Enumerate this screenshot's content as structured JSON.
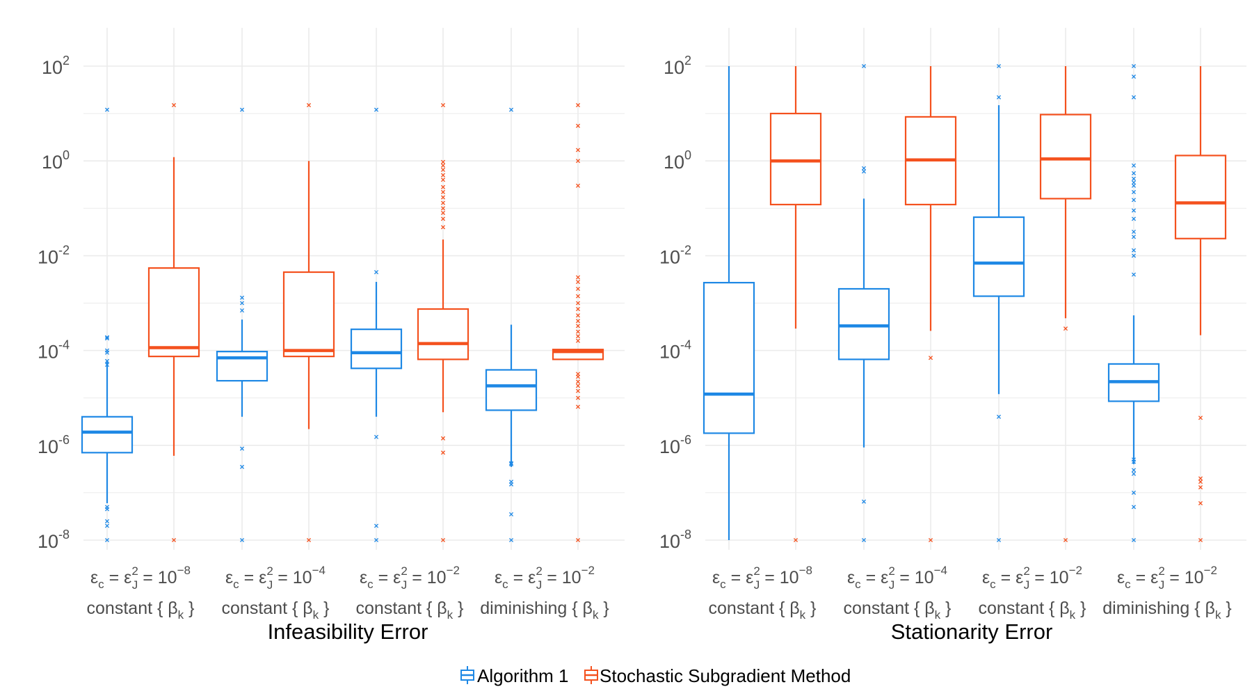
{
  "colors": {
    "algorithm1": "#1e88e5",
    "ssm": "#f4511e",
    "grid": "#ebebeb",
    "axis_text": "#4d4d4d",
    "title_text": "#000000"
  },
  "legend": {
    "position": "bottom",
    "items": [
      {
        "name": "Algorithm 1",
        "color": "#1e88e5"
      },
      {
        "name": "Stochastic Subgradient Method",
        "color": "#f4511e"
      }
    ]
  },
  "chart_data": [
    {
      "type": "box",
      "title": "Infeasibility Error",
      "yscale": "log10",
      "ylim": [
        1e-08,
        100
      ],
      "yticks": [
        {
          "value": 100,
          "base": "10",
          "exp": "2"
        },
        {
          "value": 1,
          "base": "10",
          "exp": "0"
        },
        {
          "value": 0.01,
          "base": "10",
          "exp": "-2"
        },
        {
          "value": 0.0001,
          "base": "10",
          "exp": "-4"
        },
        {
          "value": 1e-06,
          "base": "10",
          "exp": "-6"
        },
        {
          "value": 1e-08,
          "base": "10",
          "exp": "-8"
        }
      ],
      "categories": [
        {
          "line1": {
            "eps_c": "ε",
            "sub_c": "c",
            "eq": " = ε",
            "sup2": "2",
            "subJ": "J",
            "eq2": " = 10",
            "exp": "−8"
          },
          "line2": {
            "prefix": "constant { β",
            "sub": "k",
            "suffix": " }"
          }
        },
        {
          "line1": {
            "eps_c": "ε",
            "sub_c": "c",
            "eq": " = ε",
            "sup2": "2",
            "subJ": "J",
            "eq2": " = 10",
            "exp": "−4"
          },
          "line2": {
            "prefix": "constant { β",
            "sub": "k",
            "suffix": " }"
          }
        },
        {
          "line1": {
            "eps_c": "ε",
            "sub_c": "c",
            "eq": " = ε",
            "sup2": "2",
            "subJ": "J",
            "eq2": " = 10",
            "exp": "−2"
          },
          "line2": {
            "prefix": "constant { β",
            "sub": "k",
            "suffix": " }"
          }
        },
        {
          "line1": {
            "eps_c": "ε",
            "sub_c": "c",
            "eq": " = ε",
            "sup2": "2",
            "subJ": "J",
            "eq2": " = 10",
            "exp": "−2"
          },
          "line2": {
            "prefix": "diminishing { β",
            "sub": "k",
            "suffix": " }"
          }
        }
      ],
      "series": [
        {
          "name": "Algorithm 1",
          "boxes": [
            {
              "whisker_low": 6e-08,
              "q1": 7e-07,
              "median": 1.9e-06,
              "q3": 4e-06,
              "whisker_high": 6e-05,
              "outliers": [
                1e-08,
                2e-08,
                2.5e-08,
                4.5e-08,
                5e-08,
                5e-05,
                6e-05,
                9e-05,
                0.0001,
                0.00018,
                0.00019,
                12
              ]
            },
            {
              "whisker_low": 4e-06,
              "q1": 2.3e-05,
              "median": 7e-05,
              "q3": 9.5e-05,
              "whisker_high": 0.00045,
              "outliers": [
                1e-08,
                3.5e-07,
                8.5e-07,
                0.0007,
                0.001,
                0.0013,
                12
              ]
            },
            {
              "whisker_low": 4e-06,
              "q1": 4.2e-05,
              "median": 9e-05,
              "q3": 0.00028,
              "whisker_high": 0.0028,
              "outliers": [
                1e-08,
                2e-08,
                1.5e-06,
                0.0045,
                12
              ]
            },
            {
              "whisker_low": 3.5e-07,
              "q1": 5.5e-06,
              "median": 1.8e-05,
              "q3": 3.9e-05,
              "whisker_high": 0.00035,
              "outliers": [
                1e-08,
                3.5e-08,
                1.5e-07,
                1.7e-07,
                4e-07,
                4.2e-07,
                12
              ]
            }
          ]
        },
        {
          "name": "Stochastic Subgradient Method",
          "boxes": [
            {
              "whisker_low": 6e-07,
              "q1": 7.5e-05,
              "median": 0.000115,
              "q3": 0.0055,
              "whisker_high": 1.2,
              "outliers": [
                1e-08,
                15
              ]
            },
            {
              "whisker_low": 2.2e-06,
              "q1": 7.5e-05,
              "median": 0.0001,
              "q3": 0.0045,
              "whisker_high": 1,
              "outliers": [
                1e-08,
                15
              ]
            },
            {
              "whisker_low": 5e-06,
              "q1": 6.5e-05,
              "median": 0.00014,
              "q3": 0.00075,
              "whisker_high": 0.022,
              "outliers": [
                1e-08,
                7e-07,
                1.4e-06,
                0.04,
                0.06,
                0.08,
                0.1,
                0.13,
                0.17,
                0.22,
                0.28,
                0.4,
                0.5,
                0.65,
                0.8,
                0.95,
                15
              ]
            },
            {
              "whisker_low": 6.5e-05,
              "q1": 6.5e-05,
              "median": 9.5e-05,
              "q3": 0.000105,
              "whisker_high": 0.000105,
              "outliers": [
                1e-08,
                6.5e-06,
                1e-05,
                1.4e-05,
                1.8e-05,
                2.2e-05,
                2.8e-05,
                3.2e-05,
                0.00016,
                0.0002,
                0.00025,
                0.00033,
                0.00042,
                0.00055,
                0.00075,
                0.001,
                0.0014,
                0.002,
                0.0028,
                0.0035,
                0.3,
                1,
                1.7,
                5.5,
                15
              ]
            }
          ]
        }
      ]
    },
    {
      "type": "box",
      "title": "Stationarity Error",
      "yscale": "log10",
      "ylim": [
        1e-08,
        100
      ],
      "yticks": [
        {
          "value": 100,
          "base": "10",
          "exp": "2"
        },
        {
          "value": 1,
          "base": "10",
          "exp": "0"
        },
        {
          "value": 0.01,
          "base": "10",
          "exp": "-2"
        },
        {
          "value": 0.0001,
          "base": "10",
          "exp": "-4"
        },
        {
          "value": 1e-06,
          "base": "10",
          "exp": "-6"
        },
        {
          "value": 1e-08,
          "base": "10",
          "exp": "-8"
        }
      ],
      "categories": [
        {
          "line1": {
            "eps_c": "ε",
            "sub_c": "c",
            "eq": " = ε",
            "sup2": "2",
            "subJ": "J",
            "eq2": " = 10",
            "exp": "−8"
          },
          "line2": {
            "prefix": "constant { β",
            "sub": "k",
            "suffix": " }"
          }
        },
        {
          "line1": {
            "eps_c": "ε",
            "sub_c": "c",
            "eq": " = ε",
            "sup2": "2",
            "subJ": "J",
            "eq2": " = 10",
            "exp": "−4"
          },
          "line2": {
            "prefix": "constant { β",
            "sub": "k",
            "suffix": " }"
          }
        },
        {
          "line1": {
            "eps_c": "ε",
            "sub_c": "c",
            "eq": " = ε",
            "sup2": "2",
            "subJ": "J",
            "eq2": " = 10",
            "exp": "−2"
          },
          "line2": {
            "prefix": "constant { β",
            "sub": "k",
            "suffix": " }"
          }
        },
        {
          "line1": {
            "eps_c": "ε",
            "sub_c": "c",
            "eq": " = ε",
            "sup2": "2",
            "subJ": "J",
            "eq2": " = 10",
            "exp": "−2"
          },
          "line2": {
            "prefix": "diminishing { β",
            "sub": "k",
            "suffix": " }"
          }
        }
      ],
      "series": [
        {
          "name": "Algorithm 1",
          "boxes": [
            {
              "whisker_low": 1e-08,
              "q1": 1.8e-06,
              "median": 1.2e-05,
              "q3": 0.0027,
              "whisker_high": 100,
              "outliers": []
            },
            {
              "whisker_low": 9e-07,
              "q1": 6.5e-05,
              "median": 0.00033,
              "q3": 0.002,
              "whisker_high": 0.16,
              "outliers": [
                1e-08,
                6.5e-08,
                0.6,
                0.7,
                100
              ]
            },
            {
              "whisker_low": 1.2e-05,
              "q1": 0.0014,
              "median": 0.007,
              "q3": 0.065,
              "whisker_high": 15,
              "outliers": [
                1e-08,
                4e-06,
                22,
                100
              ]
            },
            {
              "whisker_low": 4e-07,
              "q1": 8.5e-06,
              "median": 2.2e-05,
              "q3": 5.2e-05,
              "whisker_high": 0.00055,
              "outliers": [
                1e-08,
                5e-08,
                1e-07,
                2.5e-07,
                3e-07,
                4.5e-07,
                5e-07,
                0.004,
                0.01,
                0.013,
                0.025,
                0.032,
                0.06,
                0.09,
                0.15,
                0.22,
                0.3,
                0.35,
                0.42,
                0.55,
                0.8,
                22,
                60,
                100
              ]
            }
          ]
        },
        {
          "name": "Stochastic Subgradient Method",
          "boxes": [
            {
              "whisker_low": 0.00029,
              "q1": 0.12,
              "median": 1,
              "q3": 10,
              "whisker_high": 100,
              "outliers": [
                1e-08
              ]
            },
            {
              "whisker_low": 0.00026,
              "q1": 0.12,
              "median": 1.05,
              "q3": 8.5,
              "whisker_high": 100,
              "outliers": [
                1e-08,
                7e-05
              ]
            },
            {
              "whisker_low": 0.00048,
              "q1": 0.16,
              "median": 1.1,
              "q3": 9.5,
              "whisker_high": 100,
              "outliers": [
                1e-08,
                0.00029
              ]
            },
            {
              "whisker_low": 0.00021,
              "q1": 0.023,
              "median": 0.13,
              "q3": 1.3,
              "whisker_high": 100,
              "outliers": [
                1e-08,
                6e-08,
                1.3e-07,
                1.7e-07,
                2e-07,
                3.8e-06
              ]
            }
          ]
        }
      ]
    }
  ]
}
